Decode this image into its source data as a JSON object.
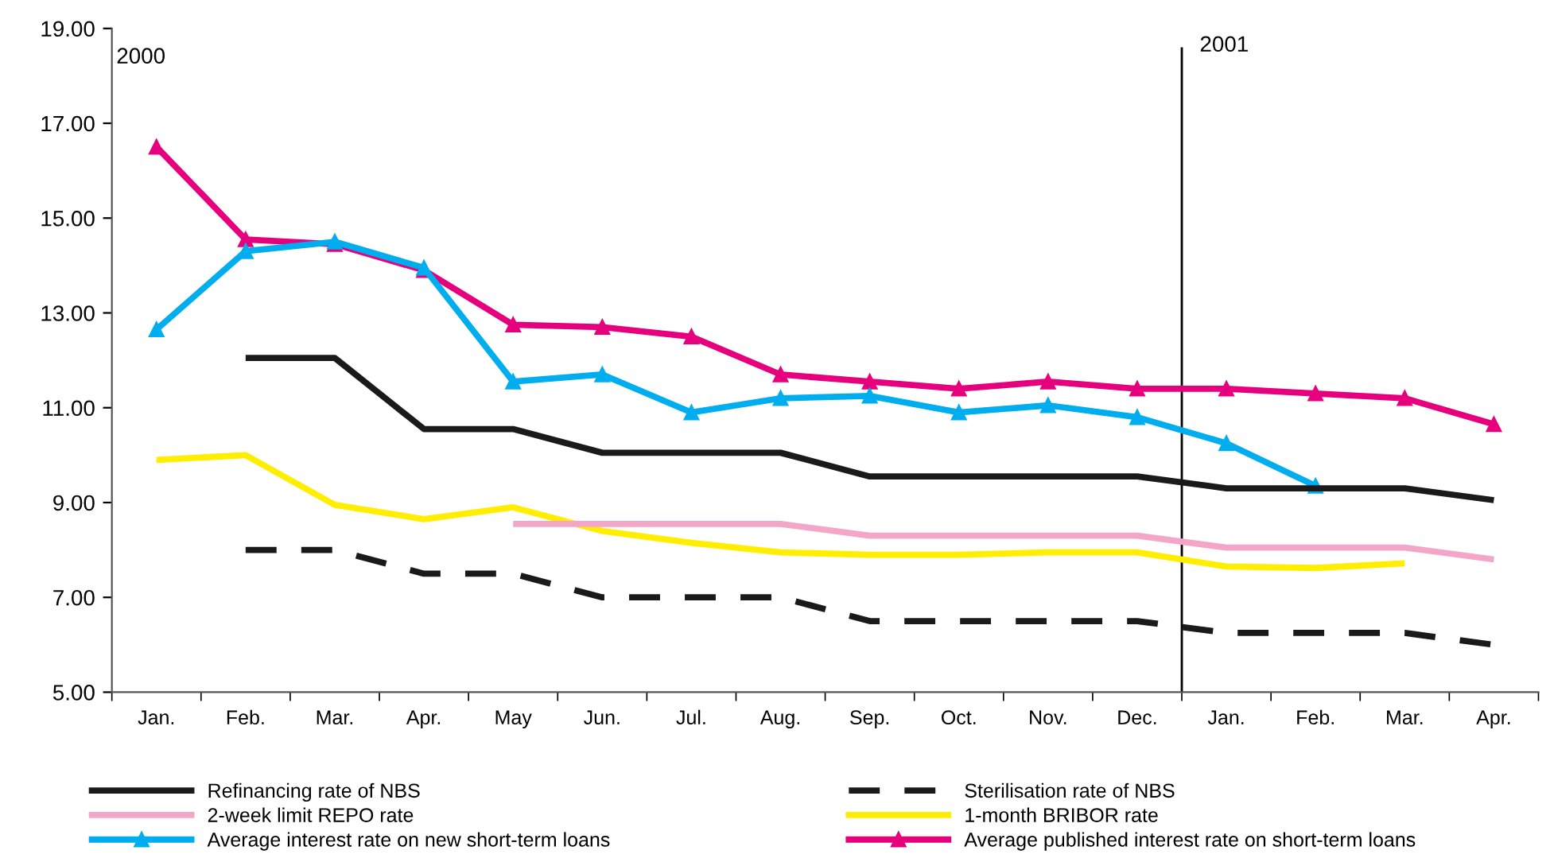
{
  "chart_data": {
    "type": "line",
    "categories": [
      "Jan.",
      "Feb.",
      "Mar.",
      "Apr.",
      "May",
      "Jun.",
      "Jul.",
      "Aug.",
      "Sep.",
      "Oct.",
      "Nov.",
      "Dec.",
      "Jan.",
      "Feb.",
      "Mar.",
      "Apr."
    ],
    "series": [
      {
        "name": "Refinancing rate of NBS",
        "color": "#1a1a1a",
        "line_style": "solid",
        "marker": "none",
        "values": [
          null,
          12.05,
          12.05,
          10.55,
          10.55,
          10.05,
          10.05,
          10.05,
          9.55,
          9.55,
          9.55,
          9.55,
          9.3,
          9.3,
          9.3,
          9.05
        ]
      },
      {
        "name": "Sterilisation rate of NBS",
        "color": "#1a1a1a",
        "line_style": "dashed",
        "marker": "none",
        "values": [
          null,
          8.0,
          8.0,
          7.5,
          7.5,
          7.0,
          7.0,
          7.0,
          6.5,
          6.5,
          6.5,
          6.5,
          6.25,
          6.25,
          6.25,
          6.0
        ]
      },
      {
        "name": "2-week limit REPO rate",
        "color": "#f4a6c8",
        "line_style": "solid",
        "marker": "none",
        "values": [
          null,
          null,
          null,
          null,
          8.55,
          8.55,
          8.55,
          8.55,
          8.3,
          8.3,
          8.3,
          8.3,
          8.05,
          8.05,
          8.05,
          7.8
        ]
      },
      {
        "name": "1-month BRIBOR rate",
        "color": "#ffee00",
        "line_style": "solid",
        "marker": "none",
        "values": [
          9.9,
          10.0,
          8.95,
          8.65,
          8.9,
          8.4,
          8.15,
          7.95,
          7.9,
          7.9,
          7.95,
          7.95,
          7.65,
          7.62,
          7.72,
          null
        ]
      },
      {
        "name": "Average interest rate on new short-term loans",
        "color": "#00aeef",
        "line_style": "solid",
        "marker": "triangle",
        "values": [
          12.65,
          14.3,
          14.5,
          13.95,
          11.55,
          11.7,
          10.9,
          11.2,
          11.25,
          10.9,
          11.05,
          10.8,
          10.25,
          9.35,
          null,
          null
        ]
      },
      {
        "name": "Average published interest rate on short-term loans",
        "color": "#e6007e",
        "line_style": "solid",
        "marker": "triangle",
        "values": [
          16.5,
          14.55,
          14.45,
          13.9,
          12.75,
          12.7,
          12.5,
          11.7,
          11.55,
          11.4,
          11.55,
          11.4,
          11.4,
          11.3,
          11.2,
          10.65
        ]
      }
    ],
    "ylim": [
      5,
      19
    ],
    "yticks": [
      {
        "value": 5,
        "label": "5.00"
      },
      {
        "value": 7,
        "label": "7.00"
      },
      {
        "value": 9,
        "label": "9.00"
      },
      {
        "value": 11,
        "label": "11.00"
      },
      {
        "value": 13,
        "label": "13.00"
      },
      {
        "value": 15,
        "label": "15.00"
      },
      {
        "value": 17,
        "label": "17.00"
      },
      {
        "value": 19,
        "label": "19.00"
      }
    ],
    "annotations": [
      "2000",
      "2001"
    ],
    "grid": false,
    "legend": "bottom"
  }
}
